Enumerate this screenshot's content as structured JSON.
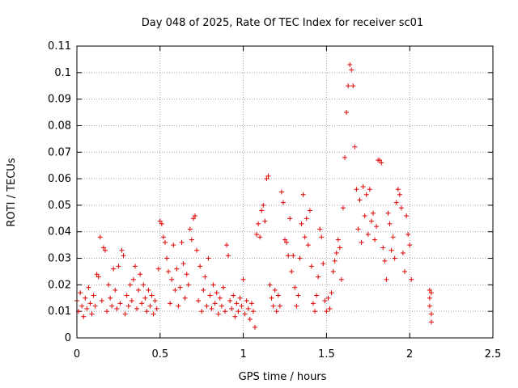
{
  "chart_data": {
    "type": "scatter",
    "title": "Day 048 of 2025, Rate Of TEC Index for receiver sc01",
    "xlabel": "GPS time / hours",
    "ylabel": "ROTI / TECUs",
    "xlim": [
      0,
      2.5
    ],
    "ylim": [
      0,
      0.11
    ],
    "x_ticks": [
      0,
      0.5,
      1,
      1.5,
      2,
      2.5
    ],
    "x_tick_labels": [
      "0",
      "0.5",
      "1",
      "1.5",
      "2",
      "2.5"
    ],
    "y_ticks": [
      0,
      0.01,
      0.02,
      0.03,
      0.04,
      0.05,
      0.06,
      0.07,
      0.08,
      0.09,
      0.1,
      0.11
    ],
    "y_tick_labels": [
      "0",
      "0.01",
      "0.02",
      "0.03",
      "0.04",
      "0.05",
      "0.06",
      "0.07",
      "0.08",
      "0.09",
      "0.1",
      "0.11"
    ],
    "grid": true,
    "marker": "+",
    "color": "#e00000",
    "series": [
      {
        "name": "ROTI",
        "points": [
          [
            0.0,
            0.014
          ],
          [
            0.01,
            0.01
          ],
          [
            0.02,
            0.017
          ],
          [
            0.03,
            0.012
          ],
          [
            0.04,
            0.008
          ],
          [
            0.05,
            0.015
          ],
          [
            0.06,
            0.011
          ],
          [
            0.07,
            0.019
          ],
          [
            0.08,
            0.013
          ],
          [
            0.09,
            0.009
          ],
          [
            0.1,
            0.016
          ],
          [
            0.11,
            0.012
          ],
          [
            0.12,
            0.024
          ],
          [
            0.13,
            0.023
          ],
          [
            0.14,
            0.038
          ],
          [
            0.15,
            0.014
          ],
          [
            0.16,
            0.034
          ],
          [
            0.17,
            0.033
          ],
          [
            0.18,
            0.01
          ],
          [
            0.19,
            0.02
          ],
          [
            0.2,
            0.015
          ],
          [
            0.21,
            0.012
          ],
          [
            0.22,
            0.026
          ],
          [
            0.23,
            0.018
          ],
          [
            0.24,
            0.011
          ],
          [
            0.25,
            0.027
          ],
          [
            0.26,
            0.013
          ],
          [
            0.27,
            0.033
          ],
          [
            0.28,
            0.031
          ],
          [
            0.29,
            0.009
          ],
          [
            0.3,
            0.016
          ],
          [
            0.31,
            0.012
          ],
          [
            0.32,
            0.02
          ],
          [
            0.33,
            0.014
          ],
          [
            0.34,
            0.022
          ],
          [
            0.35,
            0.027
          ],
          [
            0.36,
            0.011
          ],
          [
            0.37,
            0.018
          ],
          [
            0.38,
            0.024
          ],
          [
            0.39,
            0.013
          ],
          [
            0.4,
            0.02
          ],
          [
            0.41,
            0.015
          ],
          [
            0.42,
            0.01
          ],
          [
            0.43,
            0.018
          ],
          [
            0.44,
            0.012
          ],
          [
            0.45,
            0.016
          ],
          [
            0.46,
            0.009
          ],
          [
            0.47,
            0.014
          ],
          [
            0.48,
            0.011
          ],
          [
            0.49,
            0.026
          ],
          [
            0.5,
            0.044
          ],
          [
            0.51,
            0.043
          ],
          [
            0.52,
            0.038
          ],
          [
            0.53,
            0.036
          ],
          [
            0.54,
            0.03
          ],
          [
            0.55,
            0.025
          ],
          [
            0.56,
            0.013
          ],
          [
            0.57,
            0.022
          ],
          [
            0.58,
            0.035
          ],
          [
            0.59,
            0.018
          ],
          [
            0.6,
            0.026
          ],
          [
            0.61,
            0.012
          ],
          [
            0.62,
            0.019
          ],
          [
            0.63,
            0.036
          ],
          [
            0.64,
            0.028
          ],
          [
            0.65,
            0.015
          ],
          [
            0.66,
            0.024
          ],
          [
            0.67,
            0.02
          ],
          [
            0.68,
            0.041
          ],
          [
            0.69,
            0.037
          ],
          [
            0.7,
            0.045
          ],
          [
            0.71,
            0.046
          ],
          [
            0.72,
            0.033
          ],
          [
            0.73,
            0.014
          ],
          [
            0.74,
            0.027
          ],
          [
            0.75,
            0.01
          ],
          [
            0.76,
            0.018
          ],
          [
            0.77,
            0.023
          ],
          [
            0.78,
            0.012
          ],
          [
            0.79,
            0.03
          ],
          [
            0.8,
            0.016
          ],
          [
            0.81,
            0.011
          ],
          [
            0.82,
            0.02
          ],
          [
            0.83,
            0.013
          ],
          [
            0.84,
            0.017
          ],
          [
            0.85,
            0.009
          ],
          [
            0.86,
            0.015
          ],
          [
            0.87,
            0.012
          ],
          [
            0.88,
            0.019
          ],
          [
            0.89,
            0.01
          ],
          [
            0.9,
            0.035
          ],
          [
            0.91,
            0.031
          ],
          [
            0.92,
            0.014
          ],
          [
            0.93,
            0.011
          ],
          [
            0.94,
            0.016
          ],
          [
            0.95,
            0.008
          ],
          [
            0.96,
            0.013
          ],
          [
            0.97,
            0.01
          ],
          [
            0.98,
            0.015
          ],
          [
            0.99,
            0.012
          ],
          [
            1.0,
            0.022
          ],
          [
            1.01,
            0.009
          ],
          [
            1.02,
            0.014
          ],
          [
            1.03,
            0.011
          ],
          [
            1.04,
            0.007
          ],
          [
            1.05,
            0.013
          ],
          [
            1.06,
            0.01
          ],
          [
            1.07,
            0.004
          ],
          [
            1.08,
            0.039
          ],
          [
            1.09,
            0.043
          ],
          [
            1.1,
            0.038
          ],
          [
            1.11,
            0.048
          ],
          [
            1.12,
            0.05
          ],
          [
            1.13,
            0.044
          ],
          [
            1.14,
            0.06
          ],
          [
            1.15,
            0.061
          ],
          [
            1.16,
            0.02
          ],
          [
            1.17,
            0.015
          ],
          [
            1.18,
            0.012
          ],
          [
            1.19,
            0.018
          ],
          [
            1.2,
            0.01
          ],
          [
            1.21,
            0.016
          ],
          [
            1.22,
            0.012
          ],
          [
            1.23,
            0.055
          ],
          [
            1.24,
            0.051
          ],
          [
            1.25,
            0.037
          ],
          [
            1.26,
            0.036
          ],
          [
            1.27,
            0.031
          ],
          [
            1.28,
            0.045
          ],
          [
            1.29,
            0.025
          ],
          [
            1.3,
            0.031
          ],
          [
            1.31,
            0.019
          ],
          [
            1.32,
            0.012
          ],
          [
            1.33,
            0.016
          ],
          [
            1.34,
            0.03
          ],
          [
            1.35,
            0.043
          ],
          [
            1.36,
            0.054
          ],
          [
            1.37,
            0.038
          ],
          [
            1.38,
            0.045
          ],
          [
            1.39,
            0.035
          ],
          [
            1.4,
            0.048
          ],
          [
            1.41,
            0.027
          ],
          [
            1.42,
            0.013
          ],
          [
            1.43,
            0.01
          ],
          [
            1.44,
            0.016
          ],
          [
            1.45,
            0.023
          ],
          [
            1.46,
            0.041
          ],
          [
            1.47,
            0.038
          ],
          [
            1.48,
            0.028
          ],
          [
            1.49,
            0.014
          ],
          [
            1.5,
            0.01
          ],
          [
            1.51,
            0.015
          ],
          [
            1.52,
            0.011
          ],
          [
            1.53,
            0.017
          ],
          [
            1.54,
            0.025
          ],
          [
            1.55,
            0.029
          ],
          [
            1.56,
            0.032
          ],
          [
            1.57,
            0.037
          ],
          [
            1.58,
            0.034
          ],
          [
            1.59,
            0.022
          ],
          [
            1.6,
            0.049
          ],
          [
            1.61,
            0.068
          ],
          [
            1.62,
            0.085
          ],
          [
            1.63,
            0.095
          ],
          [
            1.64,
            0.103
          ],
          [
            1.65,
            0.101
          ],
          [
            1.66,
            0.095
          ],
          [
            1.67,
            0.072
          ],
          [
            1.68,
            0.056
          ],
          [
            1.69,
            0.041
          ],
          [
            1.7,
            0.052
          ],
          [
            1.71,
            0.036
          ],
          [
            1.72,
            0.057
          ],
          [
            1.73,
            0.046
          ],
          [
            1.74,
            0.054
          ],
          [
            1.75,
            0.039
          ],
          [
            1.76,
            0.056
          ],
          [
            1.77,
            0.044
          ],
          [
            1.78,
            0.047
          ],
          [
            1.79,
            0.037
          ],
          [
            1.8,
            0.042
          ],
          [
            1.81,
            0.067
          ],
          [
            1.82,
            0.067
          ],
          [
            1.83,
            0.066
          ],
          [
            1.84,
            0.034
          ],
          [
            1.85,
            0.029
          ],
          [
            1.86,
            0.022
          ],
          [
            1.87,
            0.047
          ],
          [
            1.88,
            0.043
          ],
          [
            1.89,
            0.033
          ],
          [
            1.9,
            0.038
          ],
          [
            1.91,
            0.03
          ],
          [
            1.92,
            0.051
          ],
          [
            1.93,
            0.056
          ],
          [
            1.94,
            0.054
          ],
          [
            1.95,
            0.049
          ],
          [
            1.96,
            0.032
          ],
          [
            1.97,
            0.025
          ],
          [
            1.98,
            0.046
          ],
          [
            1.99,
            0.039
          ],
          [
            2.0,
            0.035
          ],
          [
            2.01,
            0.022
          ],
          [
            2.12,
            0.018
          ],
          [
            2.12,
            0.015
          ],
          [
            2.12,
            0.012
          ],
          [
            2.13,
            0.009
          ],
          [
            2.13,
            0.006
          ],
          [
            2.13,
            0.017
          ]
        ]
      }
    ]
  }
}
